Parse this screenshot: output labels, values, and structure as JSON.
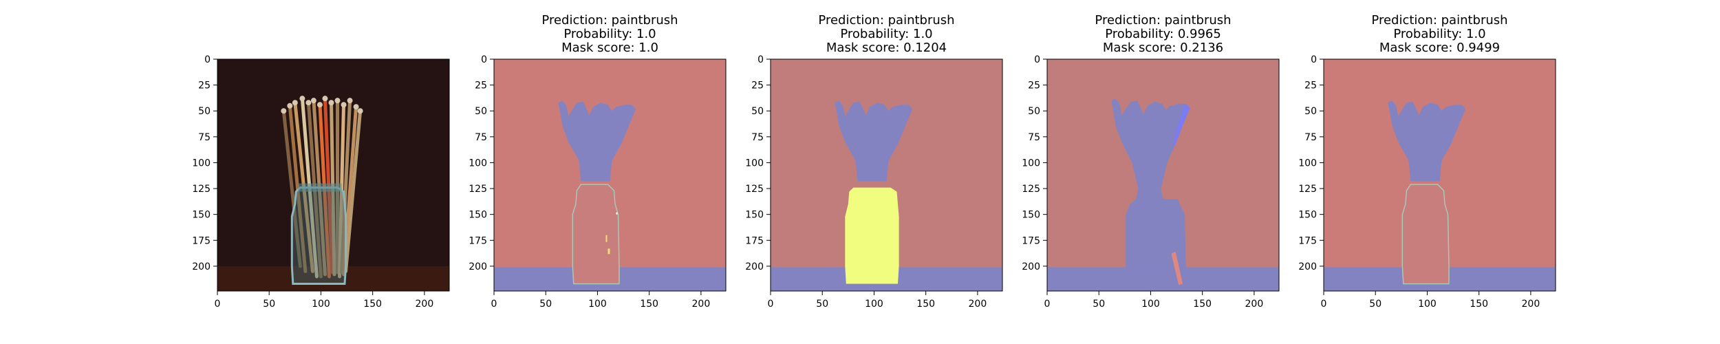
{
  "figure": {
    "axis": {
      "x_ticks": [
        0,
        50,
        100,
        150,
        200
      ],
      "y_ticks": [
        0,
        25,
        50,
        75,
        100,
        125,
        150,
        175,
        200
      ],
      "xlim": [
        0,
        224
      ],
      "ylim": [
        224,
        0
      ]
    },
    "colors": {
      "dark_red_bg": "#cb7b78",
      "muted_bg": "#c07d7c",
      "blue_mask": "#8483c2",
      "bright_blue": "#7b7cf2",
      "yellow_mask": "#f1fd7e",
      "jar_inner": "#c77e7c",
      "photo_bg": "#241312",
      "photo_table": "#3b1a12"
    },
    "panels": [
      {
        "id": "original",
        "type": "photo",
        "title_lines": []
      },
      {
        "id": "mask-1",
        "type": "mask",
        "title_lines": [
          "Prediction: paintbrush",
          "Probability: 1.0",
          "Mask score: 1.0"
        ],
        "jar": "red",
        "bg": "red"
      },
      {
        "id": "mask-2",
        "type": "mask",
        "title_lines": [
          "Prediction: paintbrush",
          "Probability: 1.0",
          "Mask score: 0.1204"
        ],
        "jar": "yellow",
        "bg": "muted"
      },
      {
        "id": "mask-3",
        "type": "mask",
        "title_lines": [
          "Prediction: paintbrush",
          "Probability: 0.9965",
          "Mask score: 0.2136"
        ],
        "jar": "blue",
        "bg": "muted"
      },
      {
        "id": "mask-4",
        "type": "mask",
        "title_lines": [
          "Prediction: paintbrush",
          "Probability: 1.0",
          "Mask score: 0.9499"
        ],
        "jar": "red",
        "bg": "red"
      }
    ]
  }
}
